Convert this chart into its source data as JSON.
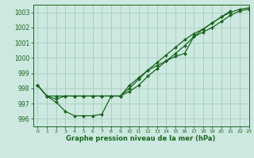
{
  "bg_color": "#cce8e0",
  "grid_color": "#aaccbb",
  "line_color": "#1a6620",
  "marker_color": "#1a6620",
  "xlabel": "Graphe pression niveau de la mer (hPa)",
  "xlim": [
    -0.5,
    23
  ],
  "ylim": [
    995.5,
    1003.5
  ],
  "yticks": [
    996,
    997,
    998,
    999,
    1000,
    1001,
    1002,
    1003
  ],
  "xticks": [
    0,
    1,
    2,
    3,
    4,
    5,
    6,
    7,
    8,
    9,
    10,
    11,
    12,
    13,
    14,
    15,
    16,
    17,
    18,
    19,
    20,
    21,
    22,
    23
  ],
  "series": [
    {
      "x": [
        0,
        1,
        2,
        3,
        4,
        5,
        6,
        7,
        8,
        9,
        10,
        11,
        12,
        13,
        14,
        15,
        16,
        17,
        18,
        19,
        20,
        21
      ],
      "y": [
        998.2,
        997.5,
        997.1,
        996.5,
        996.2,
        996.2,
        996.2,
        996.3,
        997.5,
        997.5,
        998.2,
        998.7,
        999.2,
        999.5,
        999.8,
        1000.1,
        1000.3,
        1001.4,
        1001.9,
        1002.3,
        1002.7,
        1003.1
      ]
    },
    {
      "x": [
        0,
        1,
        2,
        3,
        4,
        5,
        6,
        7,
        8,
        9,
        10,
        11,
        12,
        13,
        14,
        15,
        16,
        17,
        18,
        19,
        20,
        21,
        22,
        23
      ],
      "y": [
        998.2,
        997.5,
        997.3,
        997.5,
        997.5,
        997.5,
        997.5,
        997.5,
        997.5,
        997.5,
        997.8,
        998.2,
        998.8,
        999.3,
        999.8,
        1000.3,
        1000.8,
        1001.4,
        1001.7,
        1002.0,
        1002.4,
        1002.8,
        1003.1,
        1003.2
      ]
    },
    {
      "x": [
        0,
        1,
        2,
        3,
        4,
        5,
        6,
        7,
        8,
        9,
        10,
        11,
        12,
        13,
        14,
        15,
        16,
        17,
        18,
        19,
        20,
        21,
        22,
        23
      ],
      "y": [
        998.2,
        997.5,
        997.5,
        997.5,
        997.5,
        997.5,
        997.5,
        997.5,
        997.5,
        997.5,
        998.0,
        998.6,
        999.2,
        999.7,
        1000.2,
        1000.7,
        1001.2,
        1001.6,
        1001.9,
        1002.3,
        1002.7,
        1003.0,
        1003.2,
        1003.3
      ]
    }
  ]
}
